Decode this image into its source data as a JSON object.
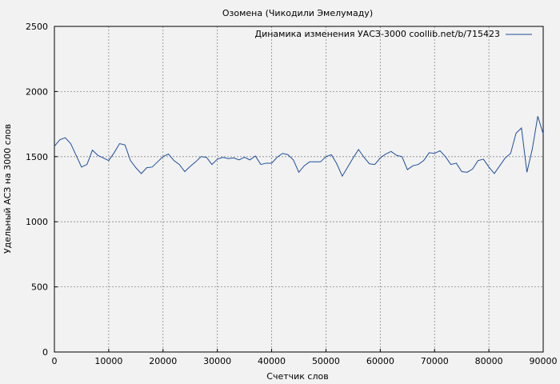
{
  "chart_data": {
    "type": "line",
    "title": "Озомена (Чикодили Эмелумаду)",
    "xlabel": "Счетчик слов",
    "ylabel": "Удельный АСЗ на 3000 слов",
    "xlim": [
      0,
      90000
    ],
    "ylim": [
      0,
      2500
    ],
    "xticks": [
      0,
      10000,
      20000,
      30000,
      40000,
      50000,
      60000,
      70000,
      80000,
      90000
    ],
    "yticks": [
      0,
      500,
      1000,
      1500,
      2000,
      2500
    ],
    "grid": true,
    "legend_position": "top-right",
    "series_color": "#1f4e9c",
    "series": [
      {
        "name": "Динамика изменения УАСЗ-3000 coollib.net/b/715423",
        "x": [
          0,
          1000,
          2000,
          3000,
          4000,
          5000,
          6000,
          7000,
          8000,
          9000,
          10000,
          11000,
          12000,
          13000,
          14000,
          15000,
          16000,
          17000,
          18000,
          19000,
          20000,
          21000,
          22000,
          23000,
          24000,
          25000,
          26000,
          27000,
          28000,
          29000,
          30000,
          31000,
          32000,
          33000,
          34000,
          35000,
          36000,
          37000,
          38000,
          39000,
          40000,
          41000,
          42000,
          43000,
          44000,
          45000,
          46000,
          47000,
          48000,
          49000,
          50000,
          51000,
          52000,
          53000,
          54000,
          55000,
          56000,
          57000,
          58000,
          59000,
          60000,
          61000,
          62000,
          63000,
          64000,
          65000,
          66000,
          67000,
          68000,
          69000,
          70000,
          71000,
          72000,
          73000,
          74000,
          75000,
          76000,
          77000,
          78000,
          79000,
          80000,
          81000,
          82000,
          83000,
          84000,
          85000,
          86000,
          87000,
          88000,
          89000,
          90000
        ],
        "y": [
          1580,
          1630,
          1645,
          1600,
          1510,
          1420,
          1440,
          1550,
          1510,
          1490,
          1470,
          1530,
          1600,
          1590,
          1470,
          1415,
          1370,
          1415,
          1420,
          1460,
          1500,
          1520,
          1470,
          1440,
          1385,
          1425,
          1460,
          1500,
          1495,
          1440,
          1480,
          1495,
          1485,
          1490,
          1475,
          1495,
          1475,
          1505,
          1440,
          1450,
          1450,
          1495,
          1525,
          1515,
          1475,
          1380,
          1430,
          1460,
          1460,
          1460,
          1500,
          1515,
          1445,
          1350,
          1420,
          1490,
          1555,
          1495,
          1445,
          1440,
          1490,
          1520,
          1540,
          1510,
          1500,
          1400,
          1430,
          1440,
          1470,
          1530,
          1525,
          1545,
          1500,
          1440,
          1450,
          1385,
          1380,
          1405,
          1470,
          1480,
          1420,
          1370,
          1430,
          1490,
          1525,
          1680,
          1720,
          1380,
          1560,
          1810,
          1675
        ]
      }
    ]
  }
}
